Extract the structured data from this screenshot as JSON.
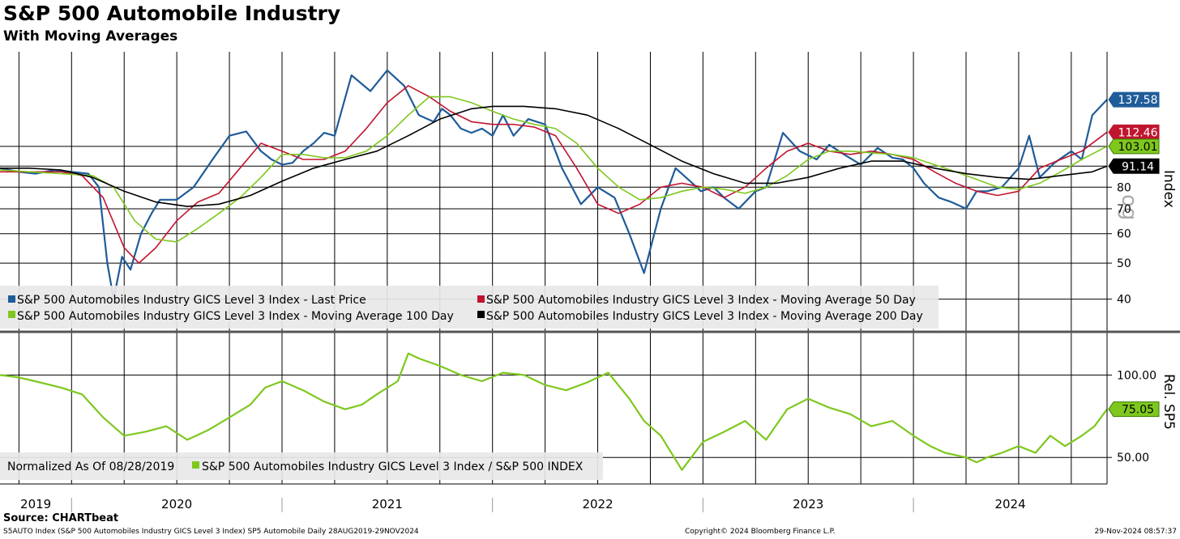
{
  "title": "S&P 500 Automobile Industry",
  "subtitle": "With Moving Averages",
  "source": "Source: CHARTbeat",
  "footer": {
    "left": "S5AUTO Index (S&P 500 Automobiles Industry GICS Level 3 Index) SP5 Automobile  Daily 28AUG2019-29NOV2024",
    "center": "Copyright© 2024 Bloomberg Finance L.P.",
    "right": "29-Nov-2024 08:57:37"
  },
  "colors": {
    "last": "#1f5c99",
    "ma50": "#c0152f",
    "ma100": "#7ec81e",
    "ma200": "#000000",
    "rel": "#7ec81e"
  },
  "chart_data": [
    {
      "type": "line",
      "y_scale": "log",
      "yaxis_label": "Index",
      "watermark": "og",
      "ylim": [
        33,
        185
      ],
      "yticks": [
        40,
        50,
        60,
        70,
        80
      ],
      "xlim": [
        2019.66,
        2024.92
      ],
      "legend_position": "bottom-left",
      "last_values": [
        {
          "label": "137.58",
          "value": 137.58,
          "color": "#1f5c99"
        },
        {
          "label": "112.46",
          "value": 112.46,
          "color": "#c0152f"
        },
        {
          "label": "103.01",
          "value": 103.01,
          "color": "#7ec81e"
        },
        {
          "label": "91.14",
          "value": 91.14,
          "color": "#000000"
        }
      ],
      "series": [
        {
          "name": "S&P 500 Automobiles Industry GICS Level 3 Index - Last Price",
          "color": "#1f5c99",
          "x": [
            2019.66,
            2019.75,
            2019.83,
            2019.92,
            2020.0,
            2020.08,
            2020.13,
            2020.17,
            2020.2,
            2020.24,
            2020.28,
            2020.33,
            2020.38,
            2020.42,
            2020.5,
            2020.58,
            2020.67,
            2020.75,
            2020.83,
            2020.9,
            2020.95,
            2021.0,
            2021.05,
            2021.1,
            2021.15,
            2021.2,
            2021.25,
            2021.33,
            2021.42,
            2021.5,
            2021.58,
            2021.65,
            2021.72,
            2021.76,
            2021.8,
            2021.85,
            2021.9,
            2021.95,
            2022.0,
            2022.05,
            2022.1,
            2022.17,
            2022.25,
            2022.33,
            2022.42,
            2022.5,
            2022.58,
            2022.65,
            2022.72,
            2022.8,
            2022.87,
            2022.95,
            2022.99,
            2023.05,
            2023.1,
            2023.17,
            2023.25,
            2023.3,
            2023.38,
            2023.46,
            2023.54,
            2023.6,
            2023.67,
            2023.75,
            2023.83,
            2023.9,
            2023.95,
            2024.0,
            2024.05,
            2024.12,
            2024.18,
            2024.25,
            2024.3,
            2024.35,
            2024.42,
            2024.5,
            2024.55,
            2024.6,
            2024.67,
            2024.75,
            2024.8,
            2024.85,
            2024.92
          ],
          "y": [
            90,
            88,
            87,
            89,
            88,
            87,
            80,
            50,
            40,
            52,
            48,
            60,
            68,
            74,
            74,
            80,
            95,
            110,
            113,
            100,
            95,
            92,
            93,
            100,
            105,
            112,
            110,
            160,
            145,
            165,
            150,
            125,
            120,
            130,
            125,
            115,
            112,
            115,
            110,
            125,
            110,
            122,
            118,
            90,
            72,
            80,
            75,
            60,
            47,
            70,
            90,
            82,
            78,
            80,
            75,
            70,
            78,
            80,
            112,
            100,
            95,
            104,
            98,
            92,
            102,
            96,
            95,
            90,
            82,
            75,
            73,
            70,
            78,
            78,
            80,
            90,
            110,
            85,
            93,
            100,
            95,
            125,
            137.58
          ]
        },
        {
          "name": "S&P 500 Automobiles Industry GICS Level 3 Index - Moving Average 50 Day",
          "color": "#c0152f",
          "x": [
            2019.66,
            2019.8,
            2019.95,
            2020.05,
            2020.15,
            2020.25,
            2020.32,
            2020.4,
            2020.5,
            2020.6,
            2020.7,
            2020.8,
            2020.9,
            2021.0,
            2021.1,
            2021.2,
            2021.3,
            2021.4,
            2021.5,
            2021.6,
            2021.7,
            2021.8,
            2021.9,
            2022.0,
            2022.1,
            2022.2,
            2022.3,
            2022.4,
            2022.5,
            2022.6,
            2022.7,
            2022.8,
            2022.9,
            2023.0,
            2023.1,
            2023.2,
            2023.3,
            2023.4,
            2023.5,
            2023.6,
            2023.7,
            2023.8,
            2023.9,
            2024.0,
            2024.1,
            2024.2,
            2024.3,
            2024.4,
            2024.5,
            2024.6,
            2024.7,
            2024.8,
            2024.92
          ],
          "y": [
            88,
            88,
            88,
            86,
            75,
            55,
            50,
            55,
            65,
            73,
            77,
            90,
            105,
            100,
            95,
            95,
            100,
            115,
            135,
            150,
            140,
            128,
            120,
            118,
            118,
            116,
            110,
            90,
            72,
            68,
            72,
            80,
            82,
            80,
            75,
            80,
            90,
            100,
            105,
            100,
            98,
            100,
            98,
            95,
            88,
            82,
            78,
            76,
            78,
            90,
            95,
            100,
            112.46
          ]
        },
        {
          "name": "S&P 500 Automobiles Industry GICS Level 3 Index - Moving Average 100 Day",
          "color": "#7ec81e",
          "x": [
            2019.66,
            2019.8,
            2019.95,
            2020.1,
            2020.2,
            2020.3,
            2020.4,
            2020.5,
            2020.6,
            2020.7,
            2020.8,
            2020.9,
            2021.0,
            2021.1,
            2021.2,
            2021.3,
            2021.4,
            2021.5,
            2021.6,
            2021.7,
            2021.8,
            2021.9,
            2022.0,
            2022.1,
            2022.2,
            2022.3,
            2022.4,
            2022.5,
            2022.6,
            2022.7,
            2022.8,
            2022.9,
            2023.0,
            2023.1,
            2023.2,
            2023.3,
            2023.4,
            2023.5,
            2023.6,
            2023.7,
            2023.8,
            2023.9,
            2024.0,
            2024.1,
            2024.2,
            2024.3,
            2024.4,
            2024.5,
            2024.6,
            2024.7,
            2024.8,
            2024.92
          ],
          "y": [
            89,
            88,
            87,
            86,
            80,
            65,
            58,
            57,
            62,
            68,
            75,
            85,
            98,
            98,
            96,
            96,
            100,
            110,
            125,
            140,
            140,
            135,
            128,
            122,
            118,
            115,
            105,
            90,
            80,
            74,
            75,
            78,
            80,
            79,
            77,
            80,
            86,
            95,
            100,
            100,
            99,
            98,
            96,
            92,
            88,
            84,
            80,
            79,
            82,
            88,
            95,
            103.01
          ]
        },
        {
          "name": "S&P 500 Automobiles Industry GICS Level 3 Index - Moving Average 200 Day",
          "color": "#000000",
          "x": [
            2019.66,
            2019.8,
            2019.95,
            2020.1,
            2020.25,
            2020.4,
            2020.55,
            2020.7,
            2020.85,
            2021.0,
            2021.15,
            2021.3,
            2021.45,
            2021.6,
            2021.75,
            2021.9,
            2022.0,
            2022.15,
            2022.3,
            2022.45,
            2022.6,
            2022.75,
            2022.9,
            2023.05,
            2023.2,
            2023.35,
            2023.5,
            2023.65,
            2023.8,
            2023.95,
            2024.1,
            2024.25,
            2024.4,
            2024.55,
            2024.7,
            2024.85,
            2024.92
          ],
          "y": [
            90,
            90,
            89,
            85,
            78,
            73,
            71,
            72,
            76,
            83,
            90,
            95,
            100,
            110,
            122,
            130,
            132,
            132,
            130,
            125,
            115,
            104,
            94,
            87,
            82,
            82,
            85,
            90,
            94,
            94,
            90,
            87,
            85,
            84,
            86,
            88,
            91.14
          ]
        }
      ]
    },
    {
      "type": "line",
      "y_scale": "log",
      "yaxis_label": "Rel. SP5",
      "ylim": [
        40,
        140
      ],
      "yticks": [
        50,
        100
      ],
      "ytick_labels": [
        "50.00",
        "100.00"
      ],
      "xlim": [
        2019.66,
        2024.92
      ],
      "xticks": [
        "2019",
        "2020",
        "2021",
        "2022",
        "2023",
        "2024"
      ],
      "legend_prefix": "Normalized As Of 08/28/2019",
      "legend_position": "bottom-left",
      "last_values": [
        {
          "label": "75.05",
          "value": 75.05,
          "color": "#7ec81e"
        }
      ],
      "series": [
        {
          "name": "S&P 500 Automobiles Industry GICS Level 3 Index / S&P 500 INDEX",
          "color": "#7ec81e",
          "x": [
            2019.66,
            2019.75,
            2019.85,
            2019.95,
            2020.05,
            2020.15,
            2020.25,
            2020.35,
            2020.45,
            2020.55,
            2020.65,
            2020.75,
            2020.85,
            2020.92,
            2021.0,
            2021.1,
            2021.2,
            2021.3,
            2021.38,
            2021.45,
            2021.55,
            2021.6,
            2021.65,
            2021.75,
            2021.85,
            2021.95,
            2022.05,
            2022.15,
            2022.25,
            2022.35,
            2022.45,
            2022.55,
            2022.65,
            2022.72,
            2022.8,
            2022.9,
            2023.0,
            2023.1,
            2023.2,
            2023.3,
            2023.4,
            2023.5,
            2023.6,
            2023.7,
            2023.8,
            2023.9,
            2024.0,
            2024.08,
            2024.15,
            2024.25,
            2024.3,
            2024.35,
            2024.42,
            2024.5,
            2024.58,
            2024.65,
            2024.72,
            2024.8,
            2024.86,
            2024.92
          ],
          "y": [
            100,
            98,
            94,
            90,
            85,
            70,
            60,
            62,
            65,
            58,
            63,
            70,
            78,
            90,
            95,
            88,
            80,
            75,
            78,
            85,
            95,
            120,
            115,
            108,
            100,
            95,
            102,
            100,
            92,
            88,
            94,
            102,
            82,
            68,
            60,
            45,
            57,
            62,
            68,
            58,
            75,
            82,
            76,
            72,
            65,
            68,
            60,
            55,
            52,
            50,
            48,
            50,
            52,
            55,
            52,
            60,
            55,
            60,
            65,
            75.05
          ]
        }
      ]
    }
  ]
}
